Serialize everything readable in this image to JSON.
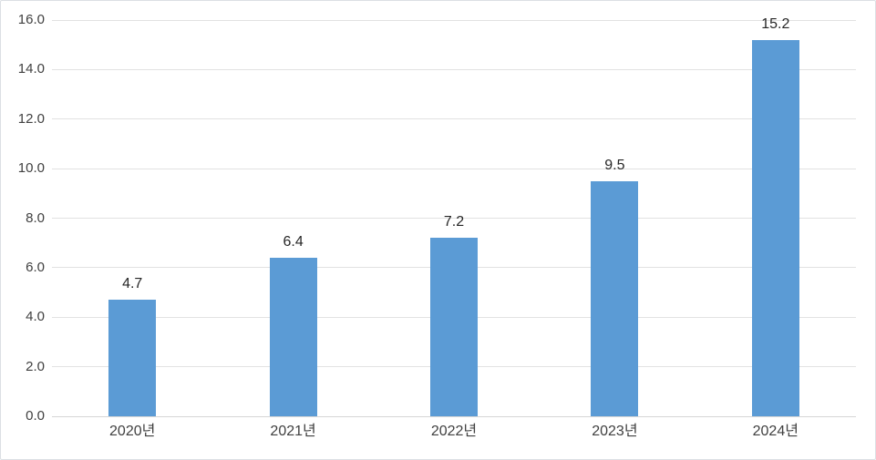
{
  "chart_data": {
    "type": "bar",
    "categories": [
      "2020년",
      "2021년",
      "2022년",
      "2023년",
      "2024년"
    ],
    "values": [
      4.7,
      6.4,
      7.2,
      9.5,
      15.2
    ],
    "value_labels": [
      "4.7",
      "6.4",
      "7.2",
      "9.5",
      "15.2"
    ],
    "title": "",
    "xlabel": "",
    "ylabel": "",
    "ylim": [
      0,
      16
    ],
    "ytick_step": 2,
    "ytick_decimals": 1,
    "grid": true,
    "legend": false,
    "colors": {
      "bar": "#5b9bd5",
      "gridline": "#e2e2e2",
      "axis_line": "#d6d6d6",
      "frame_border": "#dcdfe4",
      "tick_label": "#404040",
      "value_label": "#262626",
      "background": "#ffffff"
    }
  }
}
